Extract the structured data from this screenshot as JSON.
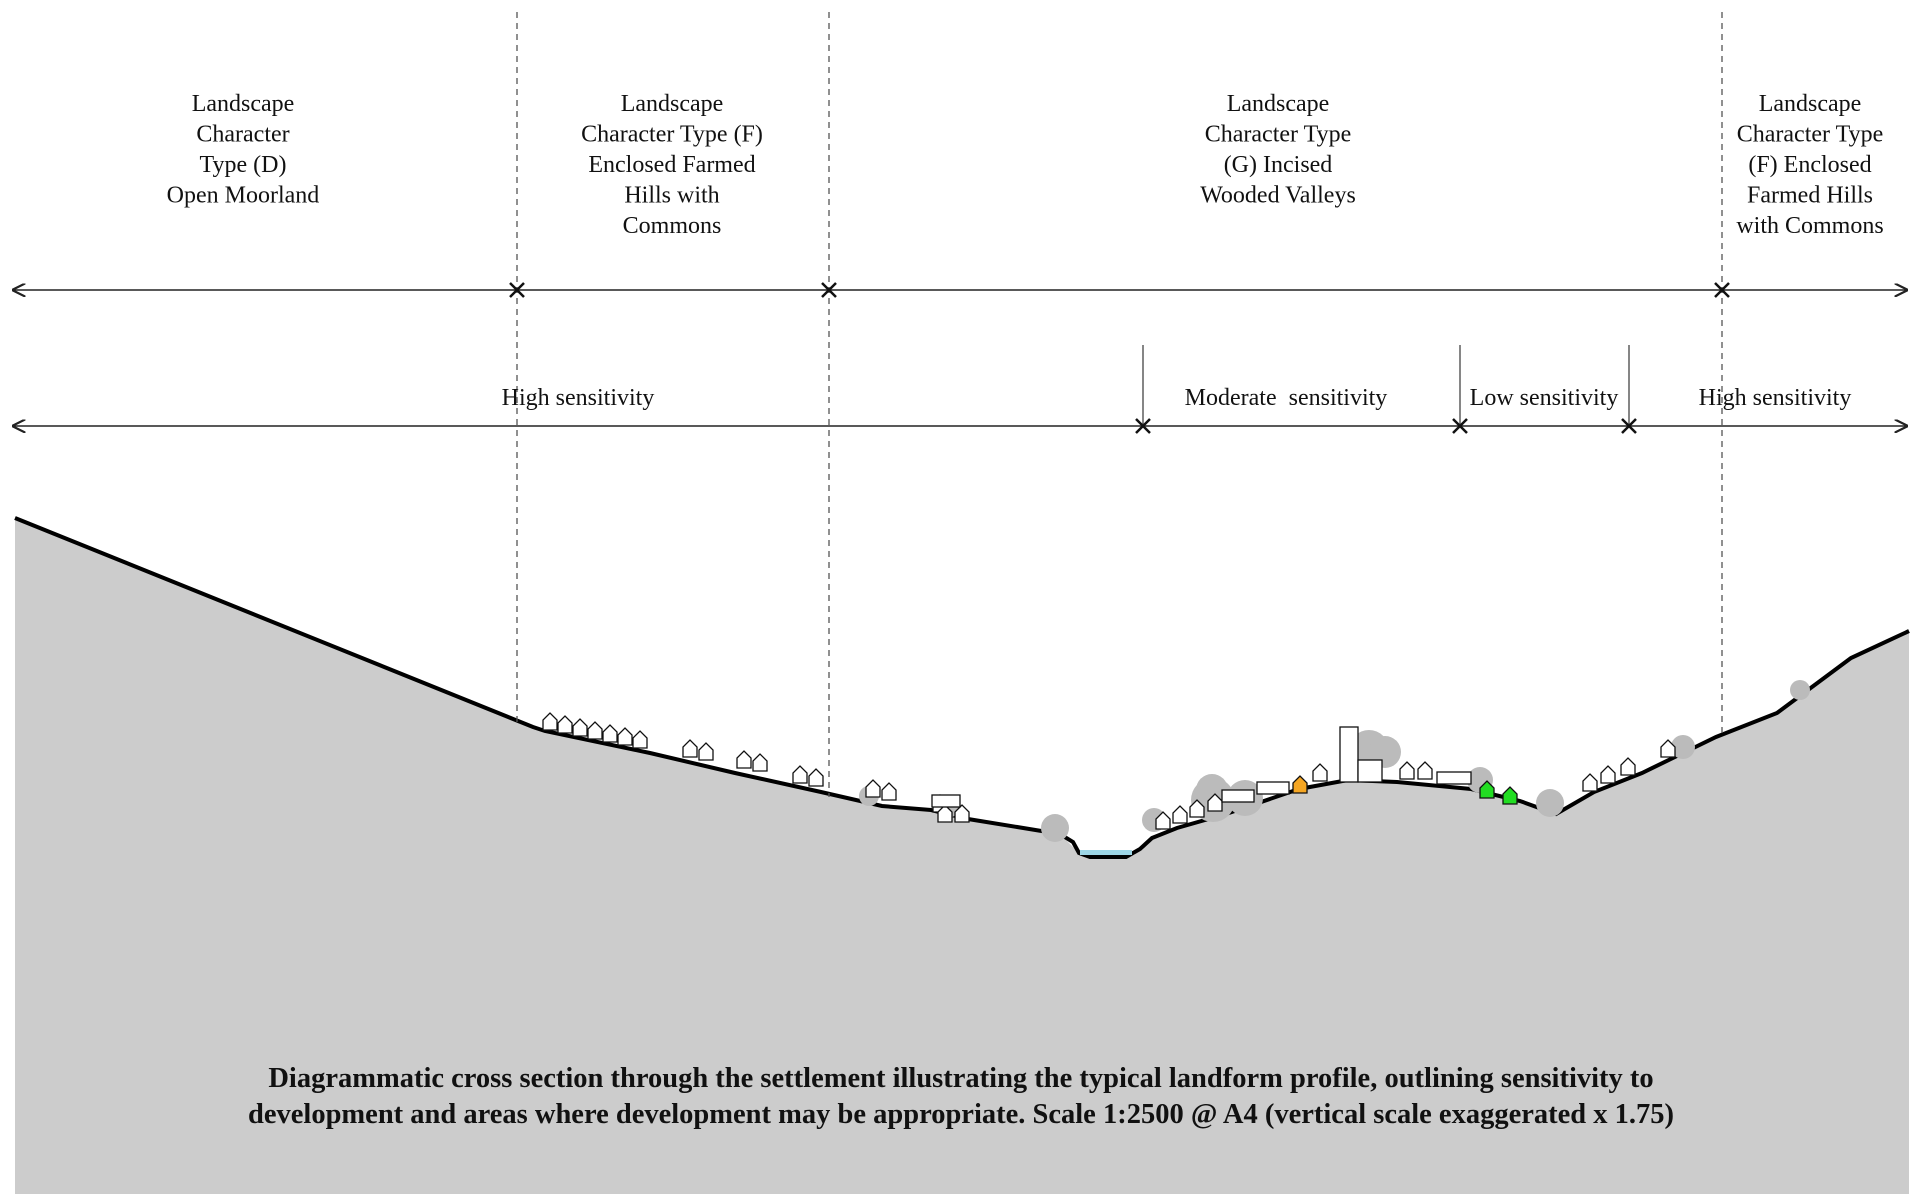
{
  "character_types": [
    {
      "lines": [
        "Landscape",
        "Character",
        "Type (D)",
        "Open Moorland"
      ]
    },
    {
      "lines": [
        "Landscape",
        "Character Type (F)",
        "Enclosed Farmed",
        "Hills with",
        "Commons"
      ]
    },
    {
      "lines": [
        "Landscape",
        "Character Type",
        "(G) Incised",
        "Wooded Valleys"
      ]
    },
    {
      "lines": [
        "Landscape",
        "Character Type",
        "(F) Enclosed",
        "Farmed Hills",
        "with Commons"
      ]
    }
  ],
  "sensitivity_zones": [
    "High sensitivity",
    "Moderate  sensitivity",
    "Low sensitivity",
    "High sensitivity"
  ],
  "caption": [
    "Diagrammatic cross section through the settlement illustrating the typical landform profile, outlining sensitivity to",
    "development and areas where development may be appropriate. Scale 1:2500 @ A4 (vertical scale exaggerated x 1.75)"
  ]
}
